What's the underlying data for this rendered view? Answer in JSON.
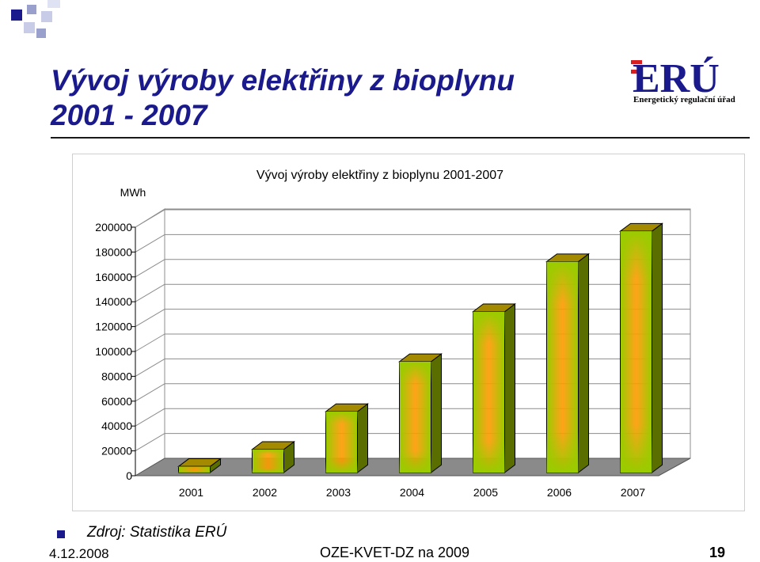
{
  "slide": {
    "title_line1": "Vývoj výroby elektřiny z bioplynu",
    "title_line2": "2001 - 2007",
    "logo_text": "ERÚ",
    "logo_subtitle": "Energetický regulační úřad",
    "source_label": "Zdroj: Statistika ERÚ",
    "footer_date": "4.12.2008",
    "footer_center": "OZE-KVET-DZ na 2009",
    "page_number": "19"
  },
  "colors": {
    "title": "#1a1a8c",
    "logo_red": "#d42020",
    "logo_blue": "#1a1a8c",
    "bar_front": "#99cc00",
    "bar_glow": "#ff9900",
    "bar_top": "#a38a00",
    "bar_side": "#5a6e00",
    "floor": "#8a8a8a",
    "wall": "#c0c0c0"
  },
  "chart_data": {
    "type": "bar",
    "title": "Vývoj výroby elektřiny z bioplynu 2001-2007",
    "ylabel": "MWh",
    "xlabel": "",
    "categories": [
      "2001",
      "2002",
      "2003",
      "2004",
      "2005",
      "2006",
      "2007"
    ],
    "values": [
      5000,
      19000,
      50000,
      91000,
      132000,
      173000,
      198000
    ],
    "ylim": [
      0,
      200000
    ],
    "yticks": [
      "0",
      "20000",
      "40000",
      "60000",
      "80000",
      "100000",
      "120000",
      "140000",
      "160000",
      "180000",
      "200000"
    ],
    "grid": true,
    "legend": "none"
  }
}
